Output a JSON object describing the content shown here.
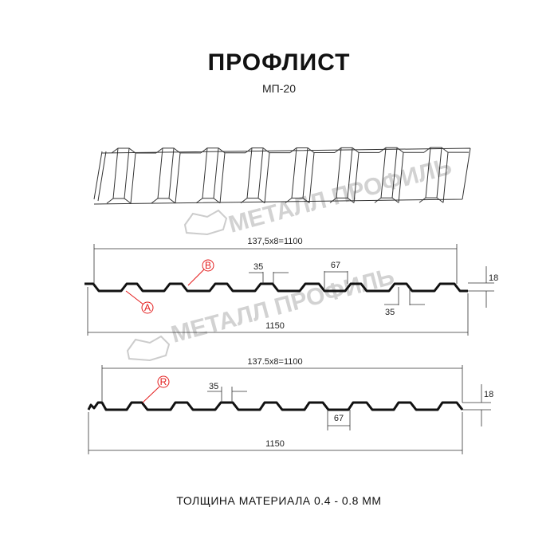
{
  "header": {
    "title": "ПРОФЛИСТ",
    "subtitle": "МП-20"
  },
  "watermark": "МЕТАЛЛ ПРОФИЛЬ",
  "drawing_top": {
    "pitch_label": "137,5x8=1100",
    "width_label": "1150",
    "crest_label": "35",
    "trough_label": "35",
    "top_width_label": "67",
    "height_label": "18",
    "markers": [
      "B",
      "A"
    ]
  },
  "drawing_bottom": {
    "pitch_label": "137.5x8=1100",
    "width_label": "1150",
    "crest_label": "35",
    "bottom_width_label": "67",
    "height_label": "18",
    "markers": [
      "R"
    ]
  },
  "footer": "ТОЛЩИНА МАТЕРИАЛА 0.4 - 0.8 ММ",
  "colors": {
    "marker": "#e41e1e",
    "profile": "#111111",
    "watermark": "#c8c8c8"
  }
}
